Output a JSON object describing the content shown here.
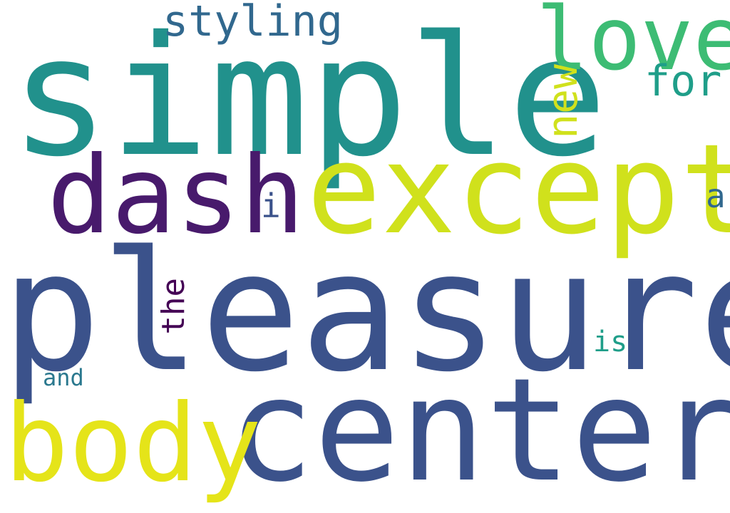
{
  "words": [
    {
      "text": "simple",
      "color": "#21918c"
    },
    {
      "text": "pleasure",
      "color": "#3b528b"
    },
    {
      "text": "center",
      "color": "#3b528b"
    },
    {
      "text": "except",
      "color": "#d0e11c"
    },
    {
      "text": "dash",
      "color": "#481a6c"
    },
    {
      "text": "body",
      "color": "#e5e419"
    },
    {
      "text": "love",
      "color": "#3dbc74"
    },
    {
      "text": "styling",
      "color": "#31688e"
    },
    {
      "text": "new",
      "color": "#d0e11c"
    },
    {
      "text": "for",
      "color": "#1f9e89"
    },
    {
      "text": "the",
      "color": "#440154"
    },
    {
      "text": "i",
      "color": "#3b528b"
    },
    {
      "text": "a",
      "color": "#31688e"
    },
    {
      "text": "is",
      "color": "#1f9e89"
    },
    {
      "text": "and",
      "color": "#2a788e"
    }
  ]
}
